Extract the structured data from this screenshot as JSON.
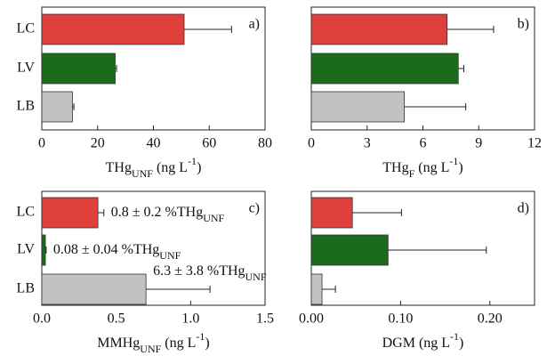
{
  "chart_data": [
    {
      "type": "bar",
      "panel_label": "a)",
      "categories": [
        "LC",
        "LV",
        "LB"
      ],
      "values": [
        51,
        26.3,
        11
      ],
      "errors": [
        17,
        0.5,
        0.5
      ],
      "colors": [
        "#e0403c",
        "#1c6b1c",
        "#c2c2c2"
      ],
      "xlim": [
        0,
        80
      ],
      "xticks": [
        0,
        20,
        40,
        60,
        80
      ],
      "xlabel": [
        {
          "text": "THg"
        },
        {
          "text": "UNF",
          "shift": "sub"
        },
        {
          "text": " (ng L"
        },
        {
          "text": "-1",
          "shift": "super"
        },
        {
          "text": ")"
        }
      ]
    },
    {
      "type": "bar",
      "panel_label": "b)",
      "values": [
        7.3,
        7.9,
        5.0
      ],
      "errors": [
        2.5,
        0.3,
        3.3
      ],
      "colors": [
        "#e0403c",
        "#1c6b1c",
        "#c2c2c2"
      ],
      "xlim": [
        0,
        12
      ],
      "xticks": [
        0,
        3,
        6,
        9,
        12
      ],
      "xlabel": [
        {
          "text": "THg"
        },
        {
          "text": "F",
          "shift": "sub"
        },
        {
          "text": " (ng L"
        },
        {
          "text": "-1",
          "shift": "super"
        },
        {
          "text": ")"
        }
      ]
    },
    {
      "type": "bar",
      "panel_label": "c)",
      "categories": [
        "LC",
        "LV",
        "LB"
      ],
      "values": [
        0.377,
        0.024,
        0.7
      ],
      "errors": [
        0.04,
        0.005,
        0.43
      ],
      "colors": [
        "#e0403c",
        "#1c6b1c",
        "#c2c2c2"
      ],
      "xlim": [
        0,
        1.5
      ],
      "xticks": [
        {
          "value": 0,
          "label": "0.0"
        },
        0.5,
        {
          "value": 1,
          "label": "1.0"
        },
        1.5
      ],
      "annotations": [
        [
          {
            "text": "0.8 ± 0.2 %THg"
          },
          {
            "text": "UNF",
            "shift": "sub"
          }
        ],
        [
          {
            "text": "0.08 ± 0.04 %THg"
          },
          {
            "text": "UNF",
            "shift": "sub"
          }
        ],
        [
          {
            "text": "6.3 ± 3.8 %THg"
          },
          {
            "text": "UNF",
            "shift": "sub"
          }
        ]
      ],
      "xlabel": [
        {
          "text": "MMHg"
        },
        {
          "text": "UNF",
          "shift": "sub"
        },
        {
          "text": " (ng L"
        },
        {
          "text": "-1",
          "shift": "super"
        },
        {
          "text": ")"
        }
      ]
    },
    {
      "type": "bar",
      "panel_label": "d)",
      "values": [
        0.046,
        0.086,
        0.012
      ],
      "errors": [
        0.055,
        0.11,
        0.015
      ],
      "colors": [
        "#e0403c",
        "#1c6b1c",
        "#c2c2c2"
      ],
      "xlim": [
        0,
        0.25
      ],
      "xticks": [
        {
          "value": 0,
          "label": "0.00"
        },
        {
          "value": 0.1,
          "label": "0.10"
        },
        {
          "value": 0.2,
          "label": "0.20"
        }
      ],
      "xlabel": [
        {
          "text": "DGM (ng L"
        },
        {
          "text": "-1",
          "shift": "super"
        },
        {
          "text": ")"
        }
      ]
    }
  ]
}
